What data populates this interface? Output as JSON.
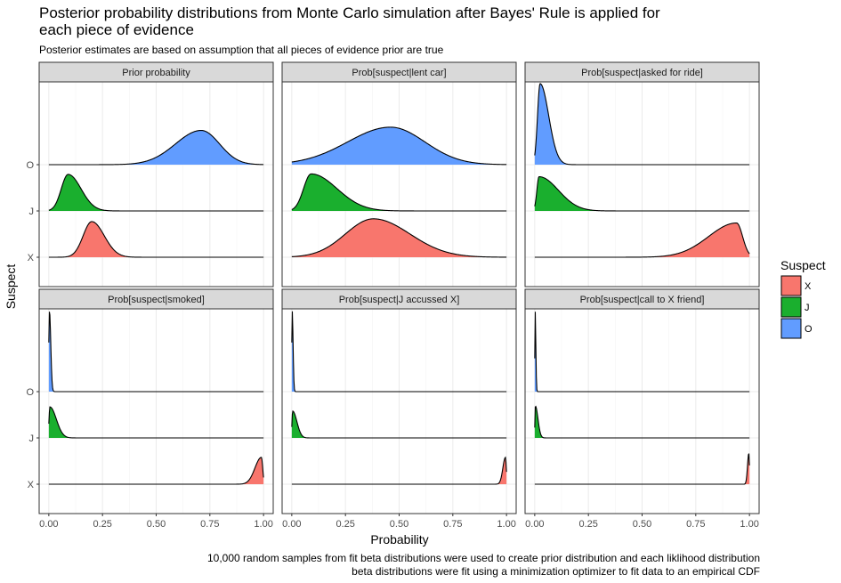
{
  "chart_data": {
    "type": "area",
    "subtype": "ridgeline density, faceted 2x3",
    "title": "Posterior probability distributions from Monte Carlo simulation after Bayes' Rule is applied for each piece of evidence",
    "subtitle": "Posterior estimates are based on assumption that all pieces of evidence prior are true",
    "caption": [
      "10,000 random samples from fit beta distributions were used to create prior distribution and each liklihood distribution",
      "beta distributions were fit using a minimization optimizer to fit data to an empirical CDF"
    ],
    "xlabel": "Probability",
    "ylabel": "Suspect",
    "xlim": [
      0,
      1
    ],
    "x_ticks": [
      "0.00",
      "0.25",
      "0.50",
      "0.75",
      "1.00"
    ],
    "y_categories": [
      "X",
      "J",
      "O"
    ],
    "grid": true,
    "legend": {
      "title": "Suspect",
      "position": "right",
      "entries": [
        {
          "name": "X",
          "color": "#f8766d"
        },
        {
          "name": "J",
          "color": "#1aaf2e"
        },
        {
          "name": "O",
          "color": "#619cff"
        }
      ]
    },
    "facets": [
      {
        "label": "Prior probability",
        "series": [
          {
            "name": "O",
            "peak_x": 0.71,
            "sd_left": 0.12,
            "sd_right": 0.085,
            "height": 0.74
          },
          {
            "name": "J",
            "peak_x": 0.09,
            "sd_left": 0.032,
            "sd_right": 0.06,
            "height": 0.79
          },
          {
            "name": "X",
            "peak_x": 0.2,
            "sd_left": 0.04,
            "sd_right": 0.058,
            "height": 0.77
          }
        ]
      },
      {
        "label": "Prob[suspect|lent car]",
        "series": [
          {
            "name": "O",
            "peak_x": 0.46,
            "sd_left": 0.2,
            "sd_right": 0.16,
            "height": 0.81
          },
          {
            "name": "J",
            "peak_x": 0.09,
            "sd_left": 0.035,
            "sd_right": 0.12,
            "height": 0.8
          },
          {
            "name": "X",
            "peak_x": 0.38,
            "sd_left": 0.13,
            "sd_right": 0.17,
            "height": 0.83
          }
        ]
      },
      {
        "label": "Prob[suspect|asked for ride]",
        "series": [
          {
            "name": "O",
            "peak_x": 0.025,
            "sd_left": 0.012,
            "sd_right": 0.04,
            "height": 1.75
          },
          {
            "name": "J",
            "peak_x": 0.02,
            "sd_left": 0.01,
            "sd_right": 0.09,
            "height": 0.74
          },
          {
            "name": "X",
            "peak_x": 0.94,
            "sd_left": 0.13,
            "sd_right": 0.028,
            "height": 0.74
          }
        ]
      },
      {
        "label": "Prob[suspect|smoked]",
        "series": [
          {
            "name": "O",
            "peak_x": 0.003,
            "sd_left": 0.003,
            "sd_right": 0.006,
            "height": 1.75
          },
          {
            "name": "J",
            "peak_x": 0.005,
            "sd_left": 0.004,
            "sd_right": 0.03,
            "height": 0.67
          },
          {
            "name": "X",
            "peak_x": 0.99,
            "sd_left": 0.03,
            "sd_right": 0.006,
            "height": 0.58
          }
        ]
      },
      {
        "label": "Prob[suspect|J accussed X]",
        "series": [
          {
            "name": "O",
            "peak_x": 0.002,
            "sd_left": 0.002,
            "sd_right": 0.004,
            "height": 1.75
          },
          {
            "name": "J",
            "peak_x": 0.004,
            "sd_left": 0.003,
            "sd_right": 0.02,
            "height": 0.58
          },
          {
            "name": "X",
            "peak_x": 0.995,
            "sd_left": 0.012,
            "sd_right": 0.004,
            "height": 0.58
          }
        ]
      },
      {
        "label": "Prob[suspect|call to X friend]",
        "series": [
          {
            "name": "O",
            "peak_x": 0.002,
            "sd_left": 0.0015,
            "sd_right": 0.003,
            "height": 1.75
          },
          {
            "name": "J",
            "peak_x": 0.003,
            "sd_left": 0.002,
            "sd_right": 0.012,
            "height": 0.69
          },
          {
            "name": "X",
            "peak_x": 0.997,
            "sd_left": 0.006,
            "sd_right": 0.003,
            "height": 0.67
          }
        ]
      }
    ]
  }
}
